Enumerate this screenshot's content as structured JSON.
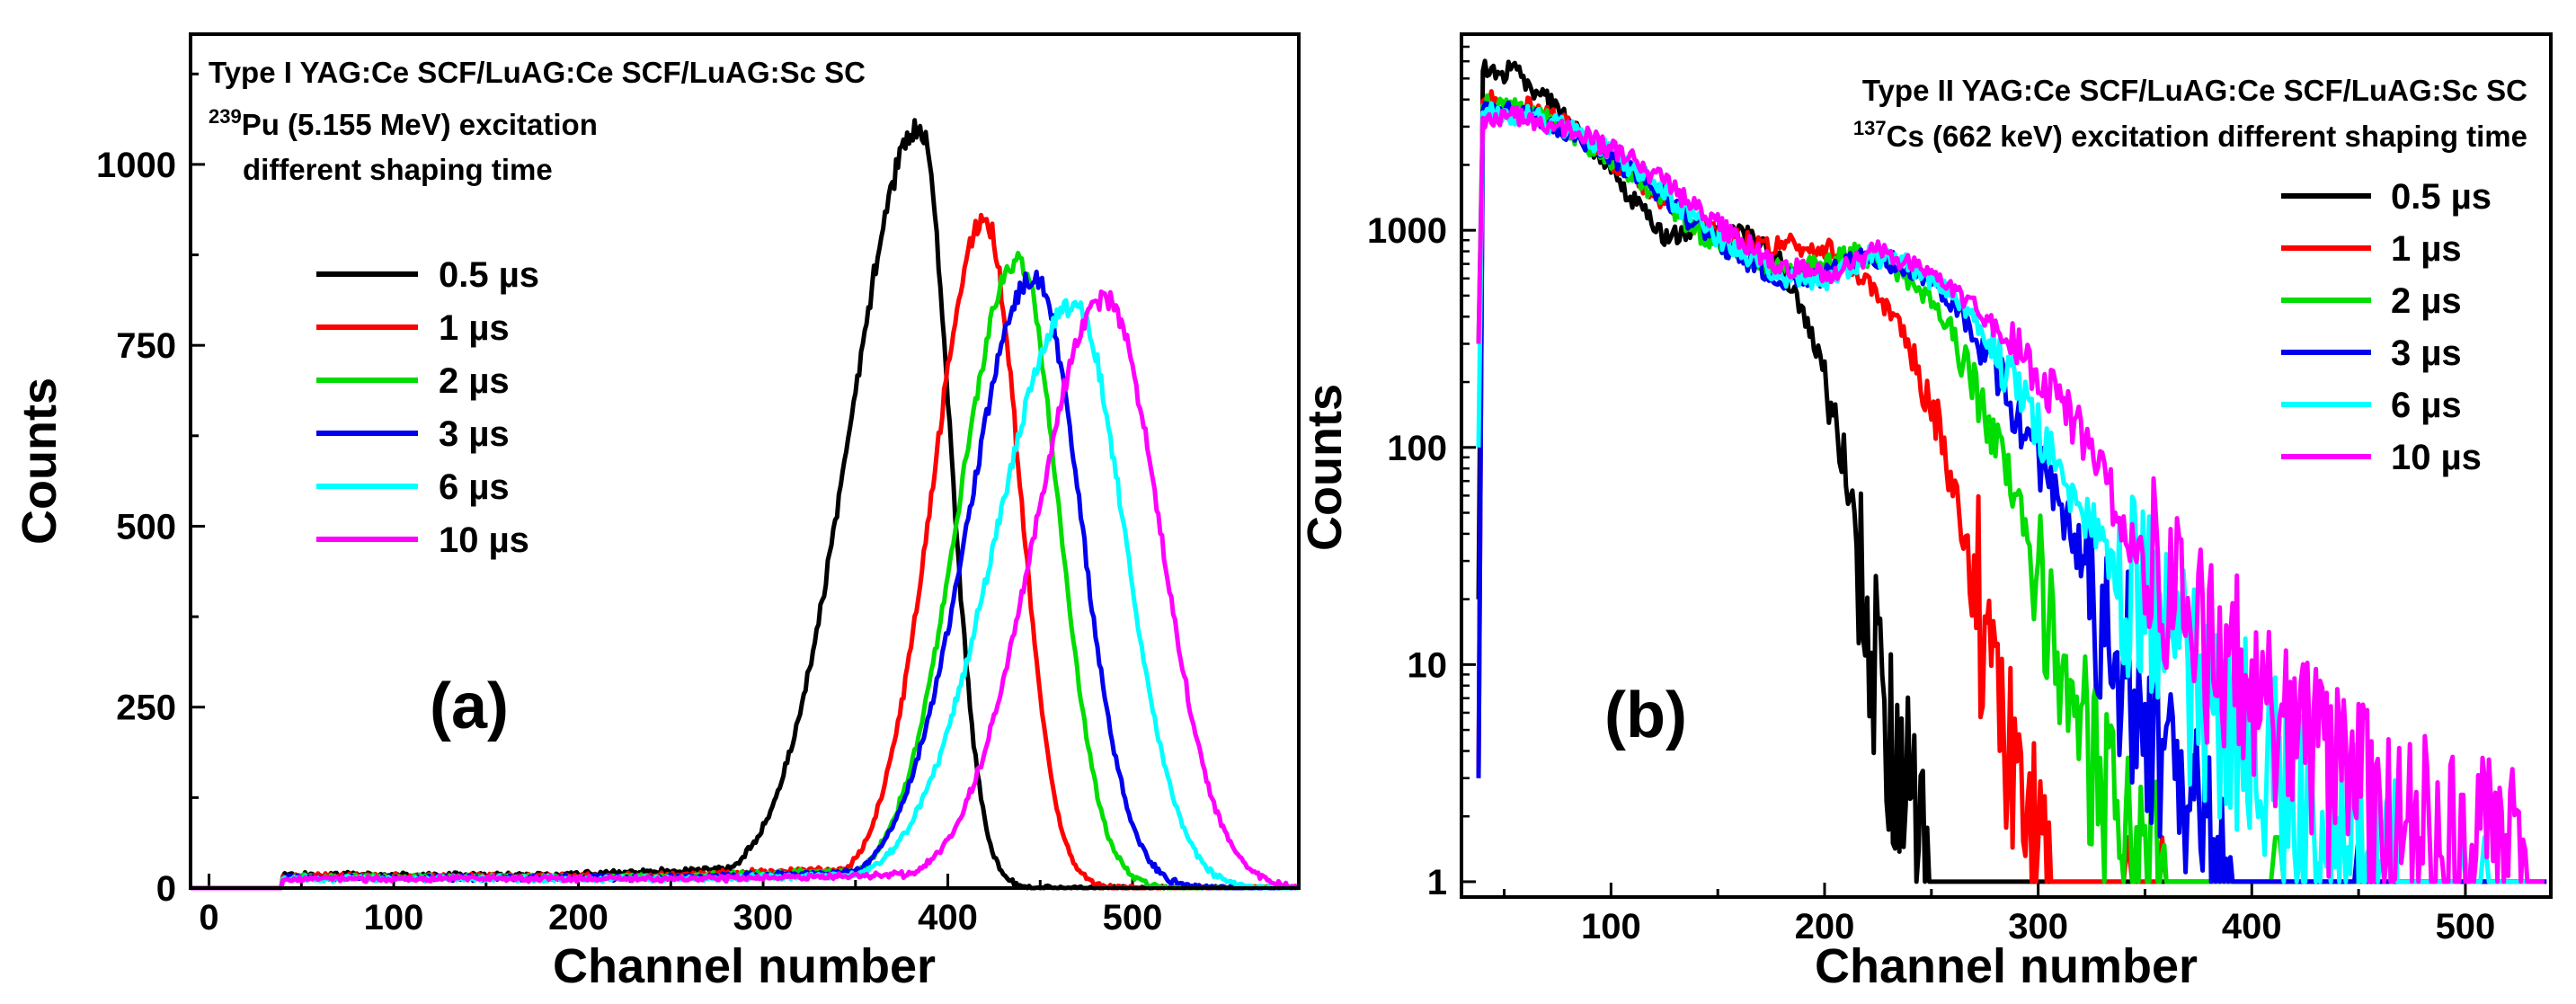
{
  "chart_data": [
    {
      "type": "line",
      "panel_label": "(a)",
      "title_lines": [
        "Type I  YAG:Ce SCF/LuAG:Ce SCF/LuAG:Sc SC",
        "Pu (5.155 MeV) excitation",
        "different shaping time"
      ],
      "isotope_sup": "239",
      "xlabel": "Channel number",
      "ylabel": "Counts",
      "xlim": [
        -10,
        590
      ],
      "ylim": [
        0,
        1180
      ],
      "yscale": "linear",
      "xticks": [
        0,
        100,
        200,
        300,
        400,
        500
      ],
      "yticks": [
        0,
        250,
        500,
        750,
        1000
      ],
      "legend_position": "center-left",
      "series": [
        {
          "name": "0.5 µs",
          "color": "#000000",
          "onset": 40,
          "base": 18,
          "peak_x": 385,
          "peak_y": 1050,
          "sigma_left": 38,
          "sigma_right": 16
        },
        {
          "name": "1 µs",
          "color": "#ff0000",
          "onset": 40,
          "base": 16,
          "peak_x": 420,
          "peak_y": 925,
          "sigma_left": 28,
          "sigma_right": 19
        },
        {
          "name": "2 µs",
          "color": "#00dd00",
          "onset": 40,
          "base": 15,
          "peak_x": 438,
          "peak_y": 870,
          "sigma_left": 32,
          "sigma_right": 22
        },
        {
          "name": "3 µs",
          "color": "#0000ee",
          "onset": 40,
          "base": 14,
          "peak_x": 447,
          "peak_y": 845,
          "sigma_left": 36,
          "sigma_right": 25
        },
        {
          "name": "6 µs",
          "color": "#00ffff",
          "onset": 40,
          "base": 13,
          "peak_x": 468,
          "peak_y": 805,
          "sigma_left": 42,
          "sigma_right": 28
        },
        {
          "name": "10 µs",
          "color": "#ff00ff",
          "onset": 40,
          "base": 13,
          "peak_x": 485,
          "peak_y": 815,
          "sigma_left": 38,
          "sigma_right": 30
        }
      ]
    },
    {
      "type": "line",
      "panel_label": "(b)",
      "title_lines": [
        "Type II YAG:Ce SCF/LuAG:Ce SCF/LuAG:Sc SC",
        "Cs (662 keV) excitation different shaping time"
      ],
      "isotope_sup": "137",
      "xlabel": "Channel number",
      "ylabel": "Counts",
      "xlim": [
        30,
        540
      ],
      "ylim": [
        0.85,
        8000
      ],
      "yscale": "log",
      "xticks": [
        100,
        200,
        300,
        400,
        500
      ],
      "yticks": [
        1,
        10,
        100,
        1000
      ],
      "ytick_labels": [
        "1",
        "10",
        "100",
        "1000"
      ],
      "legend_position": "top-right",
      "series": [
        {
          "name": "0.5 µs",
          "color": "#000000",
          "points": [
            [
              40,
              5500
            ],
            [
              55,
              5300
            ],
            [
              70,
              4000
            ],
            [
              85,
              2800
            ],
            [
              100,
              1800
            ],
            [
              115,
              1200
            ],
            [
              125,
              950
            ],
            [
              135,
              980
            ],
            [
              150,
              1000
            ],
            [
              165,
              950
            ],
            [
              180,
              700
            ],
            [
              195,
              300
            ],
            [
              210,
              80
            ],
            [
              220,
              15
            ],
            [
              228,
              5
            ],
            [
              240,
              2.2
            ],
            [
              248,
              1
            ]
          ]
        },
        {
          "name": "1 µs",
          "color": "#ff0000",
          "points": [
            [
              40,
              4000
            ],
            [
              60,
              3700
            ],
            [
              80,
              3000
            ],
            [
              100,
              2100
            ],
            [
              120,
              1500
            ],
            [
              140,
              1050
            ],
            [
              160,
              900
            ],
            [
              180,
              850
            ],
            [
              195,
              860
            ],
            [
              210,
              750
            ],
            [
              225,
              500
            ],
            [
              240,
              300
            ],
            [
              255,
              110
            ],
            [
              265,
              40
            ],
            [
              275,
              14
            ],
            [
              285,
              4
            ],
            [
              295,
              2
            ],
            [
              305,
              1
            ]
          ]
        },
        {
          "name": "2 µs",
          "color": "#00dd00",
          "points": [
            [
              40,
              3800
            ],
            [
              60,
              3500
            ],
            [
              80,
              2900
            ],
            [
              100,
              2100
            ],
            [
              120,
              1500
            ],
            [
              140,
              1000
            ],
            [
              160,
              760
            ],
            [
              180,
              640
            ],
            [
              200,
              700
            ],
            [
              215,
              780
            ],
            [
              230,
              700
            ],
            [
              245,
              520
            ],
            [
              260,
              350
            ],
            [
              275,
              140
            ],
            [
              290,
              60
            ],
            [
              300,
              20
            ],
            [
              310,
              8
            ],
            [
              320,
              4
            ],
            [
              335,
              2
            ],
            [
              350,
              1.3
            ],
            [
              360,
              1
            ]
          ]
        },
        {
          "name": "3 µs",
          "color": "#0000ee",
          "points": [
            [
              40,
              3600
            ],
            [
              60,
              3400
            ],
            [
              80,
              2900
            ],
            [
              100,
              2200
            ],
            [
              120,
              1550
            ],
            [
              140,
              1050
            ],
            [
              160,
              760
            ],
            [
              180,
              600
            ],
            [
              200,
              620
            ],
            [
              220,
              760
            ],
            [
              235,
              700
            ],
            [
              250,
              560
            ],
            [
              265,
              400
            ],
            [
              280,
              230
            ],
            [
              295,
              110
            ],
            [
              310,
              55
            ],
            [
              325,
              25
            ],
            [
              340,
              10
            ],
            [
              355,
              5
            ],
            [
              370,
              2.3
            ],
            [
              385,
              1.3
            ],
            [
              395,
              1
            ]
          ]
        },
        {
          "name": "6 µs",
          "color": "#00ffff",
          "points": [
            [
              40,
              3500
            ],
            [
              60,
              3400
            ],
            [
              80,
              2900
            ],
            [
              100,
              2300
            ],
            [
              120,
              1650
            ],
            [
              140,
              1100
            ],
            [
              160,
              800
            ],
            [
              180,
              620
            ],
            [
              200,
              580
            ],
            [
              220,
              760
            ],
            [
              235,
              720
            ],
            [
              250,
              600
            ],
            [
              265,
              440
            ],
            [
              280,
              280
            ],
            [
              295,
              150
            ],
            [
              310,
              80
            ],
            [
              325,
              45
            ],
            [
              340,
              25
            ],
            [
              355,
              15
            ],
            [
              370,
              9
            ],
            [
              385,
              6
            ],
            [
              400,
              4
            ],
            [
              415,
              2.5
            ],
            [
              430,
              2
            ],
            [
              445,
              1.5
            ],
            [
              460,
              1.2
            ],
            [
              470,
              1
            ]
          ]
        },
        {
          "name": "10 µs",
          "color": "#ff00ff",
          "points": [
            [
              40,
              3300
            ],
            [
              60,
              3300
            ],
            [
              80,
              2900
            ],
            [
              100,
              2400
            ],
            [
              120,
              1800
            ],
            [
              140,
              1250
            ],
            [
              160,
              900
            ],
            [
              180,
              680
            ],
            [
              200,
              620
            ],
            [
              215,
              720
            ],
            [
              225,
              800
            ],
            [
              240,
              700
            ],
            [
              255,
              580
            ],
            [
              270,
              450
            ],
            [
              285,
              320
            ],
            [
              300,
              220
            ],
            [
              315,
              140
            ],
            [
              330,
              75
            ],
            [
              345,
              35
            ],
            [
              360,
              20
            ],
            [
              375,
              13
            ],
            [
              390,
              9
            ],
            [
              405,
              6
            ],
            [
              420,
              4.5
            ],
            [
              435,
              3
            ],
            [
              450,
              2.4
            ],
            [
              465,
              1.9
            ],
            [
              480,
              1.6
            ],
            [
              495,
              1.3
            ],
            [
              510,
              1.2
            ],
            [
              520,
              1.1
            ],
            [
              530,
              1
            ]
          ]
        }
      ]
    }
  ]
}
